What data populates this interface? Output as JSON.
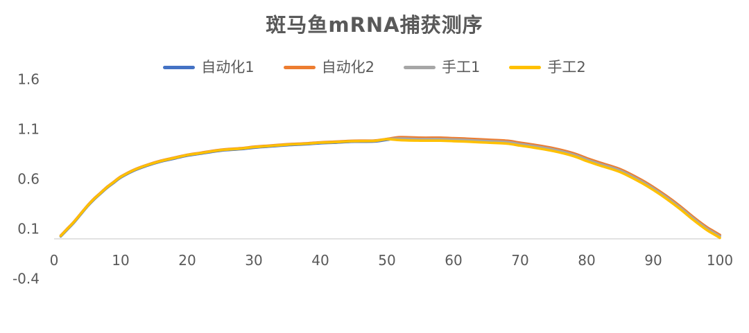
{
  "chart_data": {
    "type": "line",
    "title": "斑马鱼mRNA捕获测序",
    "xlabel": "",
    "ylabel": "",
    "xlim": [
      0,
      100
    ],
    "ylim": [
      -0.4,
      1.6
    ],
    "x_ticks": [
      0,
      10,
      20,
      30,
      40,
      50,
      60,
      70,
      80,
      90,
      100
    ],
    "y_ticks": [
      1.6,
      1.1,
      0.6,
      0.1,
      -0.4
    ],
    "grid": false,
    "legend_position": "top",
    "background_color": "#ffffff",
    "axis_line_color": "#d9d9d9",
    "text_color": "#595959",
    "x": [
      1,
      2,
      3,
      4,
      5,
      6,
      7,
      8,
      9,
      10,
      12,
      14,
      16,
      18,
      20,
      22,
      25,
      28,
      30,
      32,
      35,
      38,
      40,
      42,
      45,
      48,
      50,
      52,
      55,
      58,
      60,
      62,
      65,
      68,
      70,
      72,
      75,
      78,
      80,
      82,
      85,
      88,
      90,
      92,
      94,
      96,
      98,
      99,
      100
    ],
    "series": [
      {
        "name": "自动化1",
        "color": "#4472C4",
        "values": [
          0.024,
          0.094,
          0.164,
          0.244,
          0.324,
          0.394,
          0.454,
          0.514,
          0.564,
          0.614,
          0.684,
          0.734,
          0.774,
          0.804,
          0.834,
          0.854,
          0.884,
          0.899,
          0.914,
          0.924,
          0.939,
          0.949,
          0.959,
          0.964,
          0.974,
          0.976,
          0.993,
          1.013,
          1.008,
          1.008,
          1.003,
          0.998,
          0.988,
          0.978,
          0.958,
          0.938,
          0.903,
          0.853,
          0.803,
          0.758,
          0.693,
          0.593,
          0.513,
          0.423,
          0.323,
          0.213,
          0.113,
          0.073,
          0.033
        ]
      },
      {
        "name": "自动化2",
        "color": "#ED7D31",
        "values": [
          0.034,
          0.104,
          0.174,
          0.254,
          0.334,
          0.404,
          0.464,
          0.524,
          0.574,
          0.624,
          0.694,
          0.744,
          0.784,
          0.814,
          0.844,
          0.864,
          0.894,
          0.909,
          0.924,
          0.934,
          0.949,
          0.959,
          0.969,
          0.974,
          0.984,
          0.986,
          1.003,
          1.02,
          1.015,
          1.015,
          1.01,
          1.005,
          0.995,
          0.985,
          0.965,
          0.945,
          0.91,
          0.86,
          0.81,
          0.765,
          0.7,
          0.6,
          0.52,
          0.43,
          0.33,
          0.22,
          0.12,
          0.08,
          0.04
        ]
      },
      {
        "name": "手工1",
        "color": "#A6A6A6",
        "values": [
          0.03,
          0.1,
          0.17,
          0.25,
          0.33,
          0.4,
          0.46,
          0.52,
          0.57,
          0.62,
          0.69,
          0.74,
          0.78,
          0.81,
          0.84,
          0.86,
          0.89,
          0.905,
          0.92,
          0.93,
          0.945,
          0.955,
          0.965,
          0.97,
          0.98,
          0.982,
          0.999,
          1.006,
          1.001,
          1.001,
          0.996,
          0.991,
          0.981,
          0.971,
          0.951,
          0.931,
          0.896,
          0.846,
          0.796,
          0.751,
          0.686,
          0.586,
          0.506,
          0.416,
          0.316,
          0.206,
          0.106,
          0.066,
          0.026
        ]
      },
      {
        "name": "手工2",
        "color": "#FFC000",
        "values": [
          0.03,
          0.1,
          0.17,
          0.25,
          0.33,
          0.4,
          0.46,
          0.52,
          0.57,
          0.62,
          0.69,
          0.74,
          0.78,
          0.81,
          0.84,
          0.86,
          0.89,
          0.905,
          0.92,
          0.93,
          0.945,
          0.955,
          0.965,
          0.97,
          0.98,
          0.982,
          0.999,
          0.99,
          0.985,
          0.985,
          0.98,
          0.975,
          0.965,
          0.955,
          0.935,
          0.915,
          0.88,
          0.83,
          0.78,
          0.735,
          0.67,
          0.57,
          0.49,
          0.4,
          0.3,
          0.19,
          0.09,
          0.05,
          0.01
        ]
      }
    ]
  }
}
